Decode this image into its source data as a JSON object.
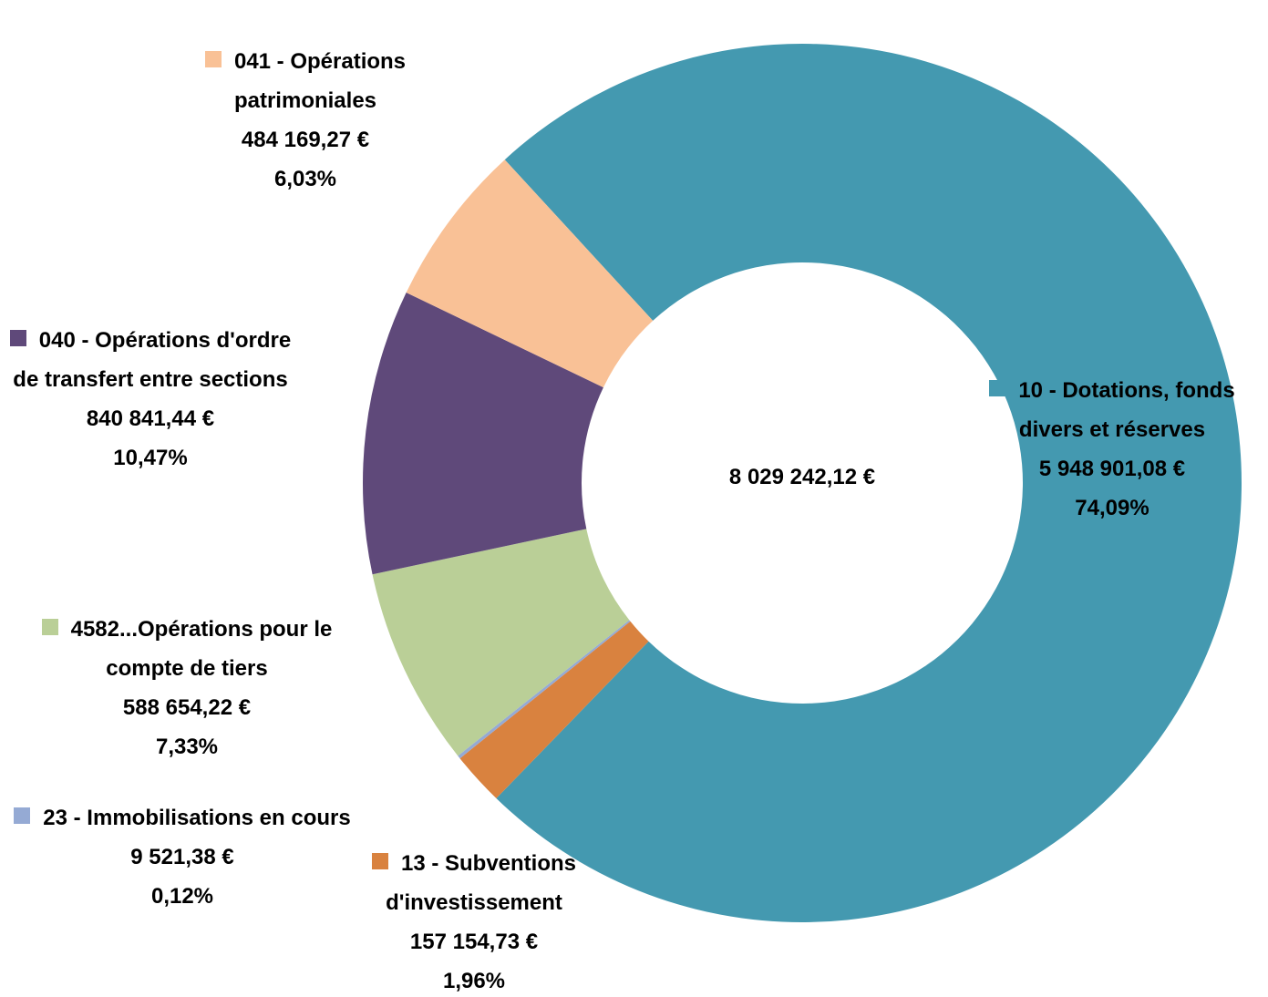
{
  "chart_data": {
    "type": "donut",
    "center_label": "8 029 242,12 €",
    "categories": [
      "10 - Dotations, fonds divers et réserves",
      "13 - Subventions d'investissement",
      "23 - Immobilisations en cours",
      "4582...Opérations pour le compte de tiers",
      "040 - Opérations d'ordre de transfert entre sections",
      "041 - Opérations patrimoniales"
    ],
    "values": [
      5948901.08,
      157154.73,
      9521.38,
      588654.22,
      840841.44,
      484169.27
    ],
    "value_labels": [
      "5 948 901,08 €",
      "157 154,73 €",
      "9 521,38 €",
      "588 654,22 €",
      "840 841,44 €",
      "484 169,27 €"
    ],
    "percents": [
      74.09,
      1.96,
      0.12,
      7.33,
      10.47,
      6.03
    ],
    "percent_labels": [
      "74,09%",
      "1,96%",
      "0,12%",
      "7,33%",
      "10,47%",
      "6,03%"
    ],
    "colors": [
      "#4499b0",
      "#d9823f",
      "#95aad4",
      "#bacf97",
      "#5f497a",
      "#f9c196"
    ]
  }
}
